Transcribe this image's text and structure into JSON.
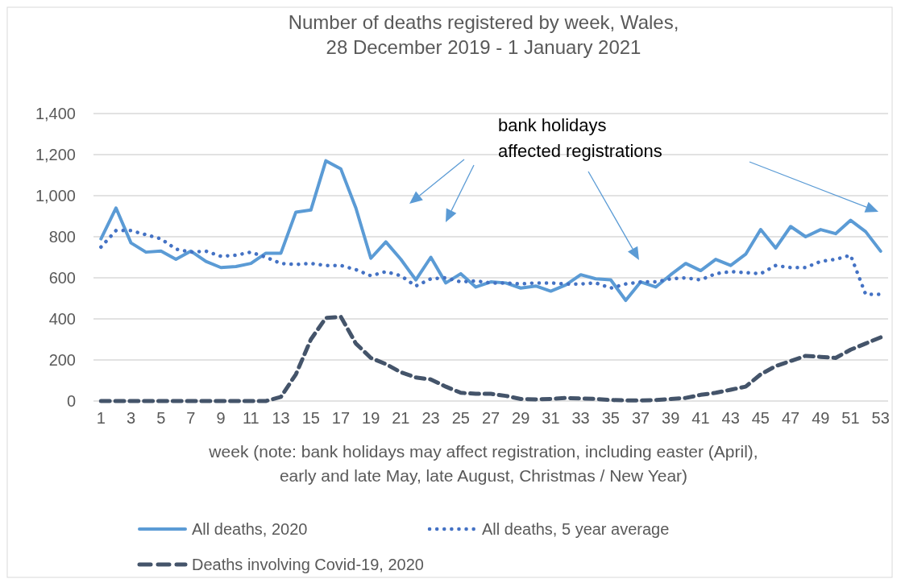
{
  "chart_data": {
    "type": "line",
    "title": "Number of deaths registered by week, Wales,\n28 December 2019 -  1 January 2021",
    "xlabel": "week (note: bank holidays may affect registration, including easter (April),\nearly and late May, late August, Christmas / New Year)",
    "annotations": [
      "bank holidays\naffected registrations"
    ],
    "x": [
      1,
      2,
      3,
      4,
      5,
      6,
      7,
      8,
      9,
      10,
      11,
      12,
      13,
      14,
      15,
      16,
      17,
      18,
      19,
      20,
      21,
      22,
      23,
      24,
      25,
      26,
      27,
      28,
      29,
      30,
      31,
      32,
      33,
      34,
      35,
      36,
      37,
      38,
      39,
      40,
      41,
      42,
      43,
      44,
      45,
      46,
      47,
      48,
      49,
      50,
      51,
      52,
      53
    ],
    "xlim": [
      0.5,
      53.5
    ],
    "xticks": [
      1,
      3,
      5,
      7,
      9,
      11,
      13,
      15,
      17,
      19,
      21,
      23,
      25,
      27,
      29,
      31,
      33,
      35,
      37,
      39,
      41,
      43,
      45,
      47,
      49,
      51,
      53
    ],
    "ylim": [
      0,
      1400
    ],
    "yticks": [
      0,
      {
        "value": 200,
        "label": "200"
      },
      {
        "value": 400,
        "label": "400"
      },
      {
        "value": 600,
        "label": "600"
      },
      {
        "value": 800,
        "label": "800"
      },
      {
        "value": 1000,
        "label": "1,000"
      },
      {
        "value": 1200,
        "label": "1,200"
      },
      {
        "value": 1400,
        "label": "1,400"
      }
    ],
    "grid": "y",
    "legend": "bottom",
    "series": [
      {
        "name": "All deaths, 2020",
        "color": "#5b9bd5",
        "line_style": "solid",
        "values": [
          790,
          940,
          770,
          725,
          730,
          690,
          730,
          680,
          650,
          655,
          670,
          720,
          720,
          920,
          930,
          1170,
          1130,
          940,
          695,
          775,
          690,
          590,
          700,
          575,
          620,
          555,
          580,
          575,
          550,
          560,
          535,
          565,
          615,
          595,
          590,
          490,
          580,
          555,
          615,
          670,
          635,
          690,
          660,
          715,
          835,
          745,
          850,
          800,
          835,
          815,
          880,
          825,
          730
        ]
      },
      {
        "name": "All deaths, 5 year average",
        "color": "#4472c4",
        "line_style": "dotted",
        "values": [
          750,
          830,
          830,
          810,
          790,
          740,
          725,
          730,
          705,
          710,
          725,
          700,
          670,
          665,
          670,
          660,
          660,
          640,
          610,
          630,
          610,
          560,
          595,
          600,
          580,
          585,
          575,
          575,
          570,
          575,
          575,
          570,
          570,
          575,
          550,
          570,
          580,
          580,
          595,
          600,
          590,
          620,
          630,
          625,
          620,
          660,
          650,
          650,
          680,
          690,
          710,
          520,
          520
        ]
      },
      {
        "name": "Deaths involving Covid-19, 2020",
        "color": "#44546a",
        "line_style": "dashed",
        "values": [
          0,
          0,
          0,
          0,
          0,
          0,
          0,
          0,
          0,
          0,
          0,
          0,
          20,
          130,
          300,
          405,
          410,
          280,
          210,
          180,
          140,
          115,
          105,
          70,
          40,
          35,
          35,
          25,
          10,
          8,
          10,
          15,
          12,
          10,
          5,
          3,
          3,
          5,
          10,
          15,
          30,
          40,
          55,
          70,
          130,
          170,
          195,
          220,
          215,
          210,
          250,
          280,
          310
        ]
      }
    ]
  }
}
